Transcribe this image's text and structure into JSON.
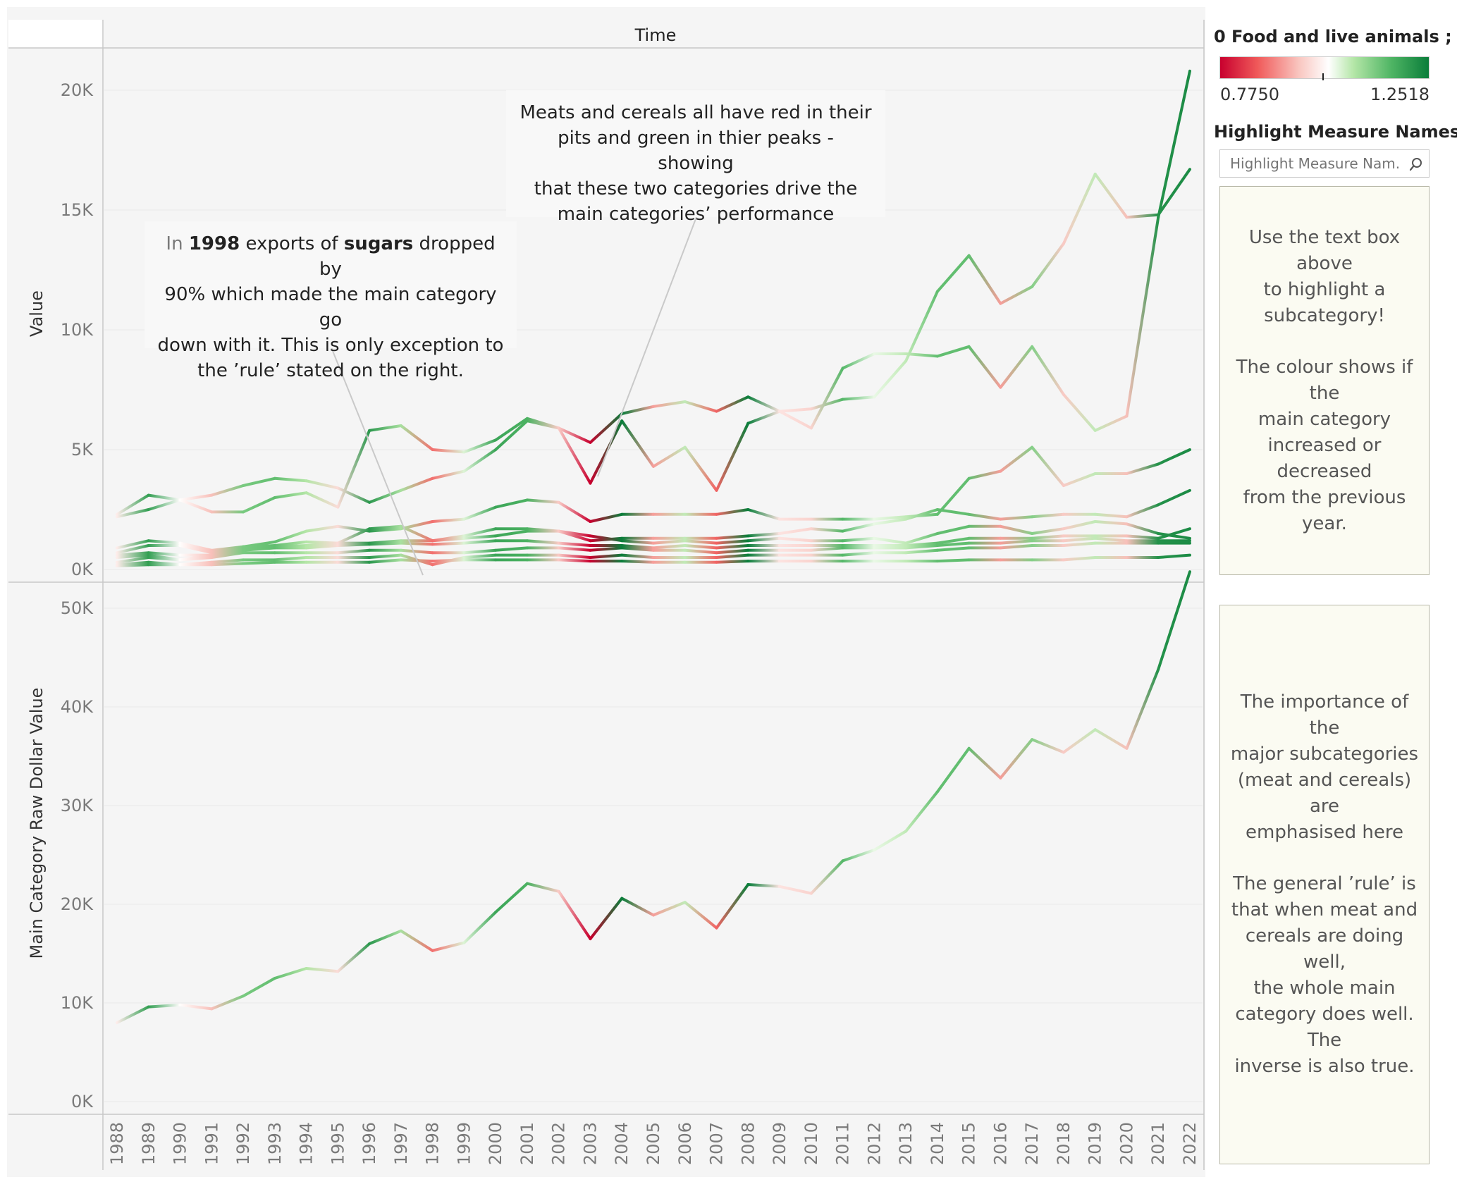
{
  "header": {
    "title": "Time"
  },
  "legend": {
    "title": "0 Food and live animals ; (..",
    "min_label": "0.7750",
    "max_label": "1.2518",
    "colors": {
      "low": "#c8002e",
      "mid": "#ffffff",
      "high": "#0a7d3a"
    }
  },
  "highlight": {
    "label": "Highlight Measure Names",
    "placeholder": "Highlight Measure Nam..."
  },
  "info_boxes": [
    {
      "lines": [
        "Use the text box above",
        "to highlight a",
        "subcategory!"
      ],
      "lines2": [
        "The colour shows if the",
        "main category",
        "increased or decreased",
        "from the previous year."
      ]
    },
    {
      "lines": [
        "The importance of the",
        "major subcategories",
        "(meat and cereals) are",
        "emphasised here"
      ],
      "lines2": [
        "The general ’rule’ is",
        "that when meat and",
        "cereals are doing well,",
        "the whole main",
        "category does well. The",
        "inverse is also true."
      ]
    }
  ],
  "annotations": {
    "sugars": {
      "p1": "In ",
      "b1": "1998",
      "p2": " exports of ",
      "b2": "sugars",
      "p3": " dropped by",
      "line2": "90% which made the main category go",
      "line3": "down with it. This is only exception to",
      "line4": "the ’rule’ stated on the right."
    },
    "meats": {
      "line1": "Meats and cereals all have red in their",
      "line2": "pits and green in thier peaks - showing",
      "line3": "that these two categories drive the",
      "line4": "main categories’ performance"
    }
  },
  "chart_data": [
    {
      "type": "line",
      "ylabel": "Value",
      "ylim": [
        0,
        21000
      ],
      "yticks": [
        "0K",
        "5K",
        "10K",
        "15K",
        "20K"
      ],
      "ytick_values": [
        0,
        5000,
        10000,
        15000,
        20000
      ],
      "x": [
        1988,
        1989,
        1990,
        1991,
        1992,
        1993,
        1994,
        1995,
        1996,
        1997,
        1998,
        1999,
        2000,
        2001,
        2002,
        2003,
        2004,
        2005,
        2006,
        2007,
        2008,
        2009,
        2010,
        2011,
        2012,
        2013,
        2014,
        2015,
        2016,
        2017,
        2018,
        2019,
        2020,
        2021,
        2022
      ],
      "growth_ratio": [
        1.0,
        1.2,
        1.02,
        0.95,
        1.13,
        1.15,
        1.08,
        0.98,
        1.21,
        1.09,
        0.88,
        1.05,
        1.19,
        1.17,
        0.96,
        0.775,
        1.2518,
        0.92,
        1.07,
        0.87,
        1.25,
        0.99,
        0.97,
        1.16,
        1.04,
        1.07,
        1.15,
        1.15,
        0.92,
        1.12,
        0.96,
        1.07,
        0.95,
        1.22,
        1.23
      ],
      "series": [
        {
          "values": [
            2300,
            3100,
            2900,
            2400,
            2400,
            3000,
            3200,
            2600,
            5800,
            6000,
            5000,
            4900,
            5400,
            6300,
            5900,
            5300,
            6500,
            6800,
            7000,
            6600,
            7200,
            6600,
            6700,
            7100,
            7200,
            8700,
            11600,
            13100,
            11100,
            11800,
            13600,
            16500,
            14700,
            14800,
            16700
          ]
        },
        {
          "values": [
            2200,
            2500,
            2900,
            3100,
            3500,
            3800,
            3700,
            3400,
            2800,
            3300,
            3800,
            4100,
            5000,
            6200,
            5900,
            3600,
            6200,
            4300,
            5100,
            3300,
            6100,
            6600,
            5900,
            8400,
            9000,
            9000,
            8900,
            9300,
            7600,
            9300,
            7300,
            5800,
            6400,
            14700,
            20800
          ]
        },
        {
          "values": [
            900,
            1200,
            1100,
            800,
            950,
            1150,
            1600,
            1800,
            1600,
            1700,
            2000,
            2100,
            2600,
            2900,
            2800,
            2000,
            2300,
            2300,
            2300,
            2300,
            2500,
            2100,
            2100,
            2100,
            2100,
            2200,
            2300,
            3800,
            4100,
            5100,
            3500,
            4000,
            4000,
            4400,
            5000
          ]
        },
        {
          "values": [
            700,
            1000,
            1000,
            700,
            950,
            1000,
            1150,
            1100,
            1700,
            1800,
            1200,
            1400,
            1700,
            1700,
            1600,
            1200,
            1300,
            1300,
            1300,
            1300,
            1400,
            1500,
            1700,
            1600,
            1900,
            2100,
            2500,
            2300,
            2100,
            2200,
            2300,
            2300,
            2200,
            2700,
            3300
          ]
        },
        {
          "values": [
            600,
            700,
            600,
            600,
            850,
            950,
            1000,
            1100,
            1100,
            1200,
            1200,
            1300,
            1400,
            1600,
            1600,
            1400,
            1200,
            1100,
            1200,
            1100,
            1200,
            1300,
            1200,
            1200,
            1300,
            1100,
            1500,
            1800,
            1800,
            1500,
            1700,
            2000,
            1900,
            1500,
            1300
          ]
        },
        {
          "values": [
            500,
            600,
            400,
            600,
            800,
            900,
            900,
            1000,
            1050,
            1100,
            1050,
            1100,
            1200,
            1200,
            1100,
            1000,
            1000,
            900,
            1000,
            900,
            1000,
            1000,
            1000,
            1000,
            1000,
            1000,
            1100,
            1300,
            1300,
            1300,
            1400,
            1400,
            1400,
            1300,
            1700
          ]
        },
        {
          "values": [
            300,
            500,
            400,
            500,
            700,
            700,
            700,
            700,
            800,
            800,
            700,
            700,
            800,
            900,
            900,
            800,
            900,
            800,
            800,
            700,
            800,
            800,
            800,
            900,
            900,
            900,
            1000,
            1100,
            1100,
            1200,
            1200,
            1300,
            1200,
            1200,
            1200
          ]
        },
        {
          "values": [
            200,
            300,
            200,
            300,
            400,
            400,
            500,
            500,
            500,
            600,
            200,
            500,
            600,
            600,
            600,
            500,
            600,
            500,
            500,
            500,
            600,
            600,
            600,
            600,
            700,
            700,
            800,
            900,
            900,
            1000,
            1000,
            1100,
            1100,
            1100,
            1100
          ]
        },
        {
          "values": [
            150,
            200,
            200,
            200,
            250,
            300,
            300,
            300,
            300,
            400,
            350,
            400,
            400,
            400,
            400,
            350,
            350,
            300,
            300,
            300,
            350,
            350,
            350,
            350,
            350,
            350,
            350,
            400,
            400,
            400,
            400,
            500,
            500,
            500,
            600
          ]
        }
      ]
    },
    {
      "type": "line",
      "ylabel": "Main Category Raw Dollar Value",
      "ylim": [
        0,
        55000
      ],
      "yticks": [
        "0K",
        "10K",
        "20K",
        "30K",
        "40K",
        "50K"
      ],
      "ytick_values": [
        0,
        10000,
        20000,
        30000,
        40000,
        50000
      ],
      "x": [
        1988,
        1989,
        1990,
        1991,
        1992,
        1993,
        1994,
        1995,
        1996,
        1997,
        1998,
        1999,
        2000,
        2001,
        2002,
        2003,
        2004,
        2005,
        2006,
        2007,
        2008,
        2009,
        2010,
        2011,
        2012,
        2013,
        2014,
        2015,
        2016,
        2017,
        2018,
        2019,
        2020,
        2021,
        2022
      ],
      "series": [
        {
          "values": [
            8000,
            9600,
            9800,
            9400,
            10700,
            12500,
            13500,
            13200,
            16000,
            17300,
            15300,
            16100,
            19200,
            22100,
            21300,
            16500,
            20600,
            18900,
            20200,
            17600,
            22000,
            21800,
            21100,
            24400,
            25500,
            27400,
            31400,
            35800,
            32800,
            36700,
            35400,
            37700,
            35800,
            43800,
            53700
          ]
        }
      ]
    }
  ]
}
